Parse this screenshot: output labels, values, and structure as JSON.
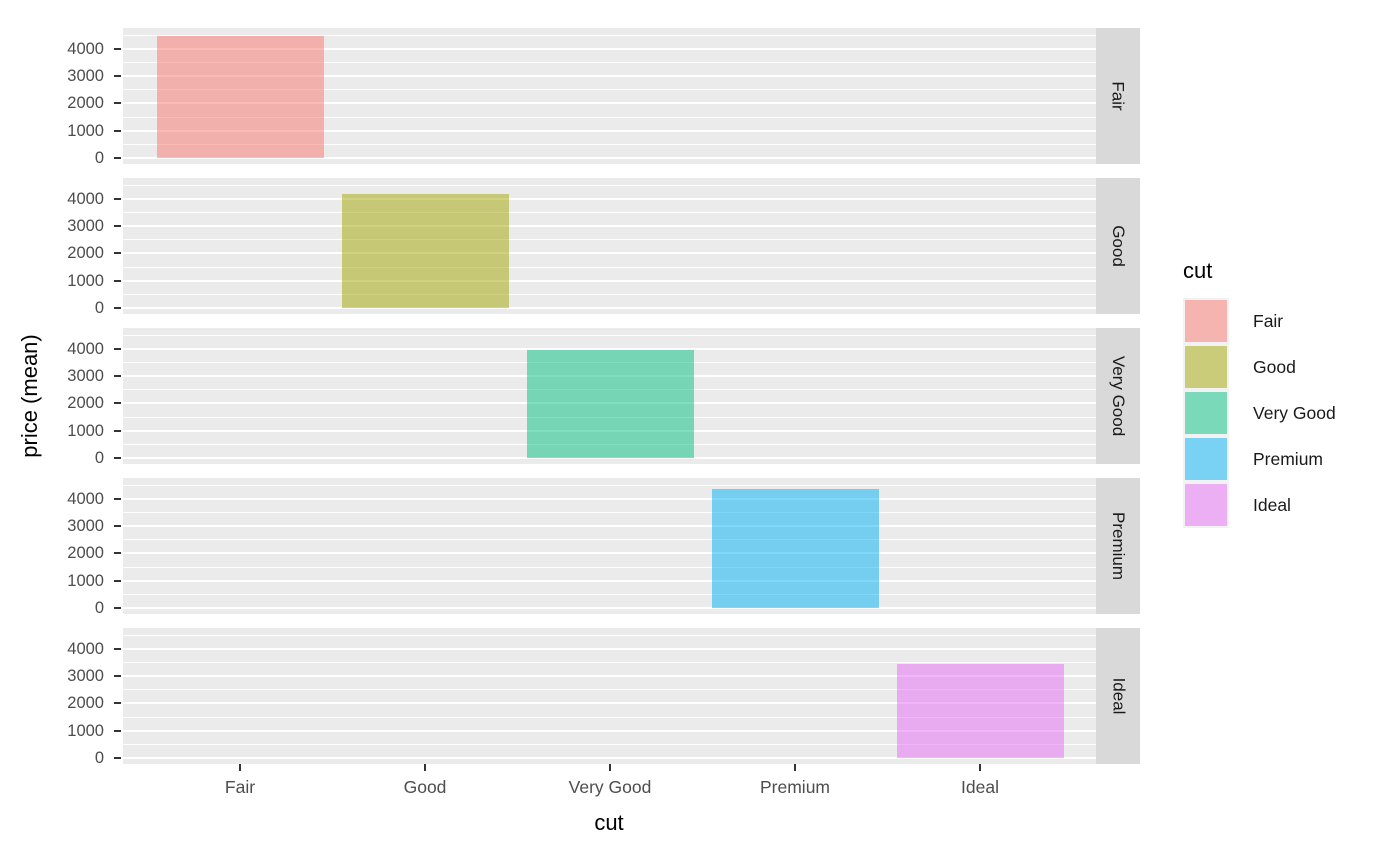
{
  "chart_data": {
    "type": "bar",
    "title": "",
    "xlabel": "cut",
    "ylabel": "price (mean)",
    "categories": [
      "Fair",
      "Good",
      "Very Good",
      "Premium",
      "Ideal"
    ],
    "values": [
      4480,
      4170,
      3960,
      4350,
      3450
    ],
    "y_ticks": [
      0,
      1000,
      2000,
      3000,
      4000
    ],
    "y_minor_ticks": [
      500,
      1500,
      2500,
      3500,
      4500
    ],
    "ylim": [
      -210,
      4715
    ],
    "grid": true,
    "facets": {
      "variable": "cut",
      "strip_position": "right",
      "labels": [
        "Fair",
        "Good",
        "Very Good",
        "Premium",
        "Ideal"
      ]
    },
    "legend": {
      "title": "cut",
      "position": "right",
      "entries": [
        "Fair",
        "Good",
        "Very Good",
        "Premium",
        "Ideal"
      ]
    },
    "series_base_colors": [
      "#F8766D",
      "#A3A500",
      "#00BF7D",
      "#00B0F6",
      "#E76BF3"
    ],
    "fill_alpha": 0.5
  },
  "colors": {
    "panel_bg": "#EBEBEB",
    "strip_bg": "#D9D9D9",
    "gridline": "#FFFFFF",
    "axis_text": "#4D4D4D",
    "strip_text": "#1A1A1A",
    "title_text": "#000000",
    "legend_key_bg": "#F2F2F2",
    "tick_mark": "#333333"
  }
}
